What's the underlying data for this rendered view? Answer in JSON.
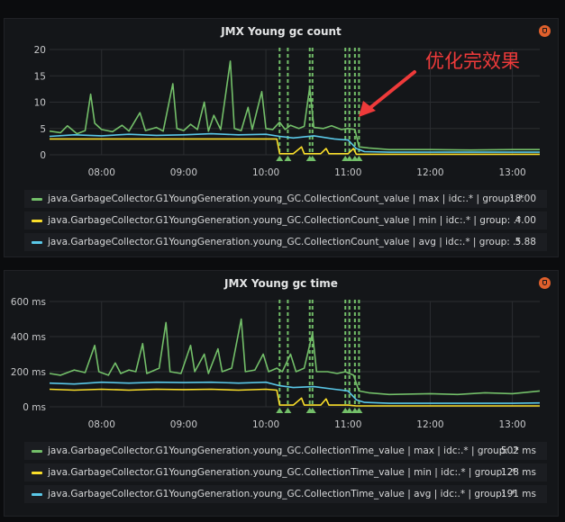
{
  "annotation": {
    "text": "优化完效果",
    "color": "#ee3a3a"
  },
  "colors": {
    "max": "#73bf69",
    "min": "#fade2a",
    "avg": "#5ac8e8",
    "threshold": "#73bf69",
    "grid": "#2b2d31",
    "axis_text": "#c7c8ca"
  },
  "panels": [
    {
      "title": "JMX Young gc count",
      "icon": "alert-bell-icon",
      "chart_data": {
        "type": "line",
        "title": "JMX Young gc count",
        "x_ticks": [
          "08:00",
          "09:00",
          "10:00",
          "11:00",
          "12:00",
          "13:00"
        ],
        "x_range": [
          "07:22",
          "13:20"
        ],
        "y_ticks": [
          "0",
          "5",
          "10",
          "15",
          "20"
        ],
        "ylim": [
          0,
          20
        ],
        "unit": "",
        "vertical_markers": [
          "10:10",
          "10:16",
          "10:32",
          "10:34",
          "10:58",
          "11:01",
          "11:05",
          "11:08"
        ],
        "series": [
          {
            "name": "java.GarbageCollector.G1YoungGeneration.young_GC.CollectionCount_value | max | idc:.* | group: .*",
            "color": "#73bf69",
            "legend_value": "18.00",
            "points": [
              [
                "07:22",
                4.5
              ],
              [
                "07:30",
                4.2
              ],
              [
                "07:35",
                5.5
              ],
              [
                "07:42",
                4.0
              ],
              [
                "07:48",
                4.6
              ],
              [
                "07:52",
                11.5
              ],
              [
                "07:55",
                6.0
              ],
              [
                "08:00",
                4.8
              ],
              [
                "08:08",
                4.4
              ],
              [
                "08:15",
                5.6
              ],
              [
                "08:20",
                4.5
              ],
              [
                "08:28",
                8.0
              ],
              [
                "08:32",
                4.6
              ],
              [
                "08:40",
                5.2
              ],
              [
                "08:45",
                4.5
              ],
              [
                "08:52",
                13.5
              ],
              [
                "08:55",
                5.0
              ],
              [
                "09:00",
                4.6
              ],
              [
                "09:05",
                5.8
              ],
              [
                "09:10",
                4.8
              ],
              [
                "09:15",
                10.0
              ],
              [
                "09:18",
                4.5
              ],
              [
                "09:22",
                7.5
              ],
              [
                "09:27",
                4.8
              ],
              [
                "09:34",
                17.8
              ],
              [
                "09:37",
                5.0
              ],
              [
                "09:42",
                4.6
              ],
              [
                "09:47",
                9.0
              ],
              [
                "09:50",
                4.8
              ],
              [
                "09:57",
                12.0
              ],
              [
                "10:00",
                5.0
              ],
              [
                "10:05",
                4.8
              ],
              [
                "10:10",
                6.2
              ],
              [
                "10:14",
                4.8
              ],
              [
                "10:18",
                5.6
              ],
              [
                "10:24",
                5.0
              ],
              [
                "10:28",
                5.4
              ],
              [
                "10:32",
                12.8
              ],
              [
                "10:35",
                5.2
              ],
              [
                "10:42",
                5.0
              ],
              [
                "10:48",
                5.5
              ],
              [
                "10:55",
                4.8
              ],
              [
                "11:00",
                5.0
              ],
              [
                "11:05",
                4.8
              ],
              [
                "11:08",
                1.5
              ],
              [
                "11:15",
                1.3
              ],
              [
                "11:30",
                1.0
              ],
              [
                "12:00",
                1.0
              ],
              [
                "12:30",
                0.9
              ],
              [
                "13:00",
                1.0
              ],
              [
                "13:20",
                1.0
              ]
            ]
          },
          {
            "name": "java.GarbageCollector.G1YoungGeneration.young_GC.CollectionCount_value | min | idc:.* | group: .*",
            "color": "#fade2a",
            "legend_value": "4.00",
            "points": [
              [
                "07:22",
                3.0
              ],
              [
                "08:00",
                3.0
              ],
              [
                "09:00",
                3.0
              ],
              [
                "09:30",
                3.0
              ],
              [
                "10:00",
                3.0
              ],
              [
                "10:08",
                3.0
              ],
              [
                "10:10",
                0.2
              ],
              [
                "10:20",
                0.2
              ],
              [
                "10:26",
                1.5
              ],
              [
                "10:28",
                0.2
              ],
              [
                "10:40",
                0.2
              ],
              [
                "10:44",
                1.2
              ],
              [
                "10:46",
                0.2
              ],
              [
                "11:00",
                0.2
              ],
              [
                "11:04",
                1.2
              ],
              [
                "11:06",
                0.1
              ],
              [
                "12:00",
                0.1
              ],
              [
                "13:00",
                0.1
              ],
              [
                "13:20",
                0.1
              ]
            ]
          },
          {
            "name": "java.GarbageCollector.G1YoungGeneration.young_GC.CollectionCount_value | avg | idc:.* | group: .*",
            "color": "#5ac8e8",
            "legend_value": "5.88",
            "points": [
              [
                "07:22",
                3.5
              ],
              [
                "07:40",
                3.8
              ],
              [
                "08:00",
                3.6
              ],
              [
                "08:20",
                3.9
              ],
              [
                "08:40",
                3.7
              ],
              [
                "09:00",
                3.8
              ],
              [
                "09:20",
                4.0
              ],
              [
                "09:40",
                3.8
              ],
              [
                "10:00",
                3.9
              ],
              [
                "10:10",
                3.5
              ],
              [
                "10:20",
                3.2
              ],
              [
                "10:35",
                3.6
              ],
              [
                "10:50",
                3.0
              ],
              [
                "11:00",
                2.8
              ],
              [
                "11:06",
                1.2
              ],
              [
                "11:12",
                0.6
              ],
              [
                "11:30",
                0.5
              ],
              [
                "12:00",
                0.5
              ],
              [
                "12:30",
                0.5
              ],
              [
                "13:00",
                0.5
              ],
              [
                "13:20",
                0.5
              ]
            ]
          }
        ]
      }
    },
    {
      "title": "JMX Young gc time",
      "icon": "alert-bell-icon",
      "chart_data": {
        "type": "line",
        "title": "JMX Young gc time",
        "x_ticks": [
          "08:00",
          "09:00",
          "10:00",
          "11:00",
          "12:00",
          "13:00"
        ],
        "x_range": [
          "07:22",
          "13:20"
        ],
        "y_ticks": [
          "0 ms",
          "200 ms",
          "400 ms",
          "600 ms"
        ],
        "ylim": [
          0,
          600
        ],
        "unit": "ms",
        "vertical_markers": [
          "10:10",
          "10:16",
          "10:32",
          "10:34",
          "10:58",
          "11:01",
          "11:05",
          "11:08"
        ],
        "series": [
          {
            "name": "java.GarbageCollector.G1YoungGeneration.young_GC.CollectionTime_value | max | idc:.* | group: .*",
            "color": "#73bf69",
            "legend_value": "502 ms",
            "points": [
              [
                "07:22",
                190
              ],
              [
                "07:30",
                180
              ],
              [
                "07:40",
                210
              ],
              [
                "07:48",
                195
              ],
              [
                "07:55",
                350
              ],
              [
                "07:58",
                200
              ],
              [
                "08:05",
                180
              ],
              [
                "08:10",
                250
              ],
              [
                "08:14",
                190
              ],
              [
                "08:20",
                210
              ],
              [
                "08:25",
                200
              ],
              [
                "08:30",
                360
              ],
              [
                "08:33",
                190
              ],
              [
                "08:42",
                220
              ],
              [
                "08:47",
                480
              ],
              [
                "08:50",
                200
              ],
              [
                "08:58",
                190
              ],
              [
                "09:05",
                350
              ],
              [
                "09:08",
                200
              ],
              [
                "09:15",
                300
              ],
              [
                "09:18",
                190
              ],
              [
                "09:25",
                330
              ],
              [
                "09:28",
                200
              ],
              [
                "09:35",
                220
              ],
              [
                "09:42",
                500
              ],
              [
                "09:45",
                200
              ],
              [
                "09:52",
                210
              ],
              [
                "09:58",
                300
              ],
              [
                "10:02",
                200
              ],
              [
                "10:08",
                220
              ],
              [
                "10:12",
                200
              ],
              [
                "10:18",
                300
              ],
              [
                "10:22",
                200
              ],
              [
                "10:28",
                220
              ],
              [
                "10:34",
                420
              ],
              [
                "10:37",
                200
              ],
              [
                "10:45",
                200
              ],
              [
                "10:52",
                190
              ],
              [
                "10:58",
                200
              ],
              [
                "11:04",
                180
              ],
              [
                "11:08",
                90
              ],
              [
                "11:15",
                80
              ],
              [
                "11:30",
                70
              ],
              [
                "12:00",
                75
              ],
              [
                "12:20",
                70
              ],
              [
                "12:40",
                80
              ],
              [
                "13:00",
                75
              ],
              [
                "13:20",
                90
              ]
            ]
          },
          {
            "name": "java.GarbageCollector.G1YoungGeneration.young_GC.CollectionTime_value | min | idc:.* | group: .*",
            "color": "#fade2a",
            "legend_value": "128 ms",
            "points": [
              [
                "07:22",
                100
              ],
              [
                "07:40",
                95
              ],
              [
                "08:00",
                100
              ],
              [
                "08:20",
                95
              ],
              [
                "08:40",
                100
              ],
              [
                "09:00",
                98
              ],
              [
                "09:20",
                100
              ],
              [
                "09:40",
                95
              ],
              [
                "10:00",
                100
              ],
              [
                "10:08",
                95
              ],
              [
                "10:10",
                10
              ],
              [
                "10:20",
                10
              ],
              [
                "10:26",
                50
              ],
              [
                "10:28",
                10
              ],
              [
                "10:40",
                10
              ],
              [
                "10:44",
                45
              ],
              [
                "10:46",
                10
              ],
              [
                "11:00",
                10
              ],
              [
                "11:06",
                5
              ],
              [
                "12:00",
                5
              ],
              [
                "13:00",
                5
              ],
              [
                "13:20",
                5
              ]
            ]
          },
          {
            "name": "java.GarbageCollector.G1YoungGeneration.young_GC.CollectionTime_value | avg | idc:.* | group: .*",
            "color": "#5ac8e8",
            "legend_value": "191 ms",
            "points": [
              [
                "07:22",
                135
              ],
              [
                "07:40",
                130
              ],
              [
                "08:00",
                140
              ],
              [
                "08:20",
                135
              ],
              [
                "08:40",
                140
              ],
              [
                "09:00",
                138
              ],
              [
                "09:20",
                140
              ],
              [
                "09:40",
                135
              ],
              [
                "10:00",
                140
              ],
              [
                "10:10",
                120
              ],
              [
                "10:20",
                110
              ],
              [
                "10:35",
                115
              ],
              [
                "10:50",
                100
              ],
              [
                "11:00",
                90
              ],
              [
                "11:06",
                40
              ],
              [
                "11:12",
                25
              ],
              [
                "11:30",
                20
              ],
              [
                "12:00",
                20
              ],
              [
                "12:30",
                20
              ],
              [
                "13:00",
                20
              ],
              [
                "13:20",
                22
              ]
            ]
          }
        ]
      }
    }
  ]
}
